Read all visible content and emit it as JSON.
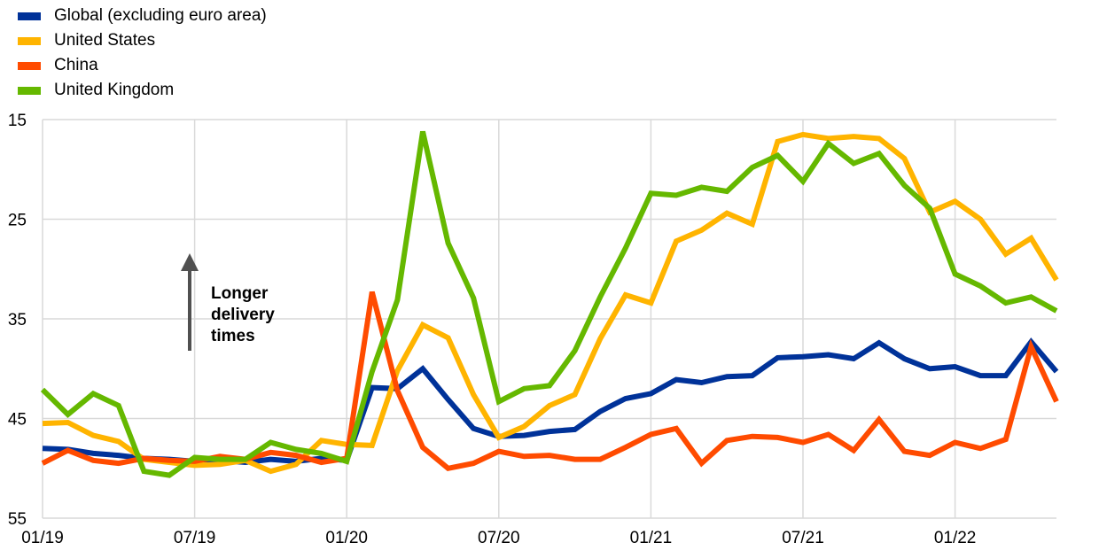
{
  "chart_data": {
    "type": "line",
    "title": "",
    "xlabel": "",
    "ylabel": "",
    "ylim": [
      15,
      55
    ],
    "y_inverted": true,
    "grid": true,
    "legend_placement": "top-left",
    "yticks": [
      "15",
      "25",
      "35",
      "45",
      "55"
    ],
    "xtick_labels": [
      "01/19",
      "07/19",
      "01/20",
      "07/20",
      "01/21",
      "07/21",
      "01/22"
    ],
    "x": [
      "01/19",
      "02/19",
      "03/19",
      "04/19",
      "05/19",
      "06/19",
      "07/19",
      "08/19",
      "09/19",
      "10/19",
      "11/19",
      "12/19",
      "01/20",
      "02/20",
      "03/20",
      "04/20",
      "05/20",
      "06/20",
      "07/20",
      "08/20",
      "09/20",
      "10/20",
      "11/20",
      "12/20",
      "01/21",
      "02/21",
      "03/21",
      "04/21",
      "05/21",
      "06/21",
      "07/21",
      "08/21",
      "09/21",
      "10/21",
      "11/21",
      "12/21",
      "01/22",
      "02/22",
      "03/22",
      "04/22",
      "05/22"
    ],
    "annotation": {
      "lines": [
        "Longer",
        "delivery",
        "times"
      ]
    },
    "series": [
      {
        "name": "Global (excluding euro area)",
        "color": "#003299",
        "values": [
          48.0,
          48.1,
          48.5,
          48.7,
          49.0,
          49.1,
          49.3,
          49.2,
          49.4,
          49.1,
          49.3,
          49.0,
          49.2,
          41.9,
          42.0,
          40.0,
          43.1,
          46.0,
          46.8,
          46.7,
          46.3,
          46.1,
          44.3,
          43.0,
          42.5,
          41.1,
          41.4,
          40.8,
          40.7,
          38.9,
          38.8,
          38.6,
          39.0,
          37.4,
          39.0,
          40.0,
          39.8,
          40.7,
          40.7,
          37.3,
          40.3
        ]
      },
      {
        "name": "United States",
        "color": "#FFB400",
        "values": [
          45.5,
          45.4,
          46.7,
          47.3,
          49.1,
          49.4,
          49.7,
          49.6,
          49.2,
          50.3,
          49.6,
          47.2,
          47.6,
          47.7,
          40.2,
          35.6,
          36.9,
          42.6,
          46.9,
          45.8,
          43.7,
          42.6,
          37.0,
          32.6,
          33.4,
          27.2,
          26.1,
          24.4,
          25.5,
          17.2,
          16.5,
          16.9,
          16.7,
          16.9,
          18.9,
          24.3,
          23.2,
          25.0,
          28.5,
          26.9,
          31.1
        ]
      },
      {
        "name": "China",
        "color": "#FF4B00",
        "values": [
          49.5,
          48.2,
          49.2,
          49.5,
          49.0,
          49.2,
          49.3,
          48.8,
          49.1,
          48.4,
          48.7,
          49.4,
          49.0,
          32.3,
          42.2,
          47.9,
          50.0,
          49.5,
          48.3,
          48.8,
          48.7,
          49.1,
          49.1,
          47.9,
          46.6,
          46.0,
          49.5,
          47.2,
          46.8,
          46.9,
          47.4,
          46.6,
          48.2,
          45.1,
          48.3,
          48.7,
          47.4,
          48.0,
          47.1,
          37.8,
          43.3
        ]
      },
      {
        "name": "United Kingdom",
        "color": "#65B800",
        "values": [
          42.1,
          44.6,
          42.5,
          43.7,
          50.3,
          50.7,
          48.9,
          49.1,
          49.1,
          47.4,
          48.1,
          48.5,
          49.3,
          40.3,
          33.1,
          16.2,
          27.4,
          32.9,
          43.3,
          42.0,
          41.7,
          38.2,
          32.8,
          27.9,
          22.4,
          22.6,
          21.8,
          22.2,
          19.8,
          18.6,
          21.2,
          17.4,
          19.4,
          18.4,
          21.6,
          23.9,
          30.5,
          31.7,
          33.4,
          32.8,
          34.2
        ]
      }
    ]
  }
}
